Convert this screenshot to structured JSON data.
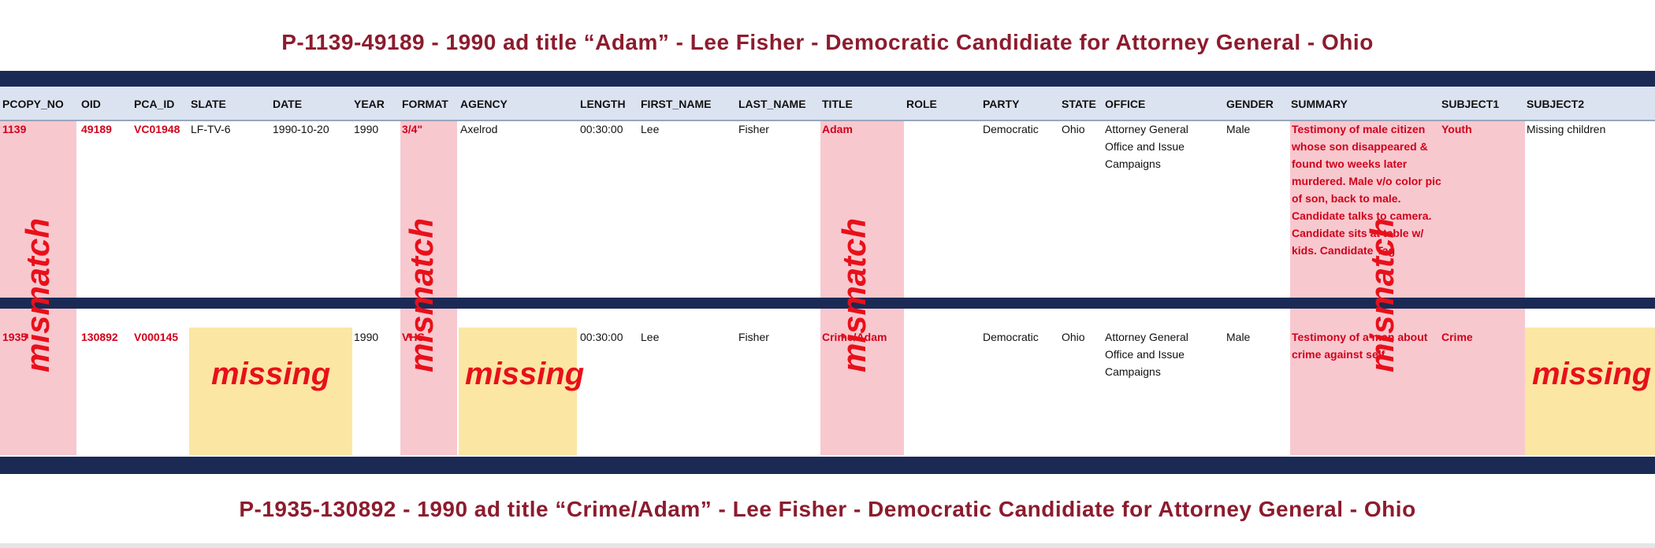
{
  "title_top": "P-1139-49189 - 1990 ad title “Adam” - Lee Fisher - Democratic Candidiate for Attorney General - Ohio",
  "title_bottom": "P-1935-130892 - 1990 ad title “Crime/Adam” - Lee Fisher - Democratic Candidiate for Attorney General - Ohio",
  "headers": [
    "PCOPY_NO",
    "OID",
    "PCA_ID",
    "SLATE",
    "DATE",
    "YEAR",
    "FORMAT",
    "AGENCY",
    "LENGTH",
    "FIRST_NAME",
    "LAST_NAME",
    "TITLE",
    "ROLE",
    "PARTY",
    "STATE",
    "OFFICE",
    "GENDER",
    "SUMMARY",
    "SUBJECT1",
    "SUBJECT2"
  ],
  "row1": {
    "pcopy_no": "1139",
    "oid": "49189",
    "pca_id": "VC01948",
    "slate": "LF-TV-6",
    "date": "1990-10-20",
    "year": "1990",
    "format": "3/4\"",
    "agency": "Axelrod",
    "length": "00:30:00",
    "first_name": "Lee",
    "last_name": "Fisher",
    "title": "Adam",
    "role": "",
    "party": "Democratic",
    "state": "Ohio",
    "office": "Attorney General Office and Issue Campaigns",
    "gender": "Male",
    "summary": "Testimony of male citizen whose son disappeared & found two weeks later murdered. Male v/o color pic of son, back to male. Candidate talks to camera. Candidate sits at table w/ kids. Candidate Tag",
    "subject1": "Youth",
    "subject2": "Missing children"
  },
  "row2": {
    "pcopy_no": "1935",
    "oid": "130892",
    "pca_id": "V000145",
    "slate": "",
    "date": "",
    "year": "1990",
    "format": "VHS",
    "agency": "",
    "length": "00:30:00",
    "first_name": "Lee",
    "last_name": "Fisher",
    "title": "Crime/Adam",
    "role": "",
    "party": "Democratic",
    "state": "Ohio",
    "office": "Attorney General Office and Issue Campaigns",
    "gender": "Male",
    "summary": "Testimony of a man about crime against self",
    "subject1": "Crime",
    "subject2": ""
  },
  "labels": {
    "mismatch": "mismatch",
    "missing": "missing"
  },
  "colors": {
    "mismatch_highlight": "#f8c8cf",
    "missing_highlight": "#fbe6a4",
    "annotation_red": "#e8101a",
    "title_maroon": "#8c1c2e",
    "navy_band": "#1b2a55"
  }
}
